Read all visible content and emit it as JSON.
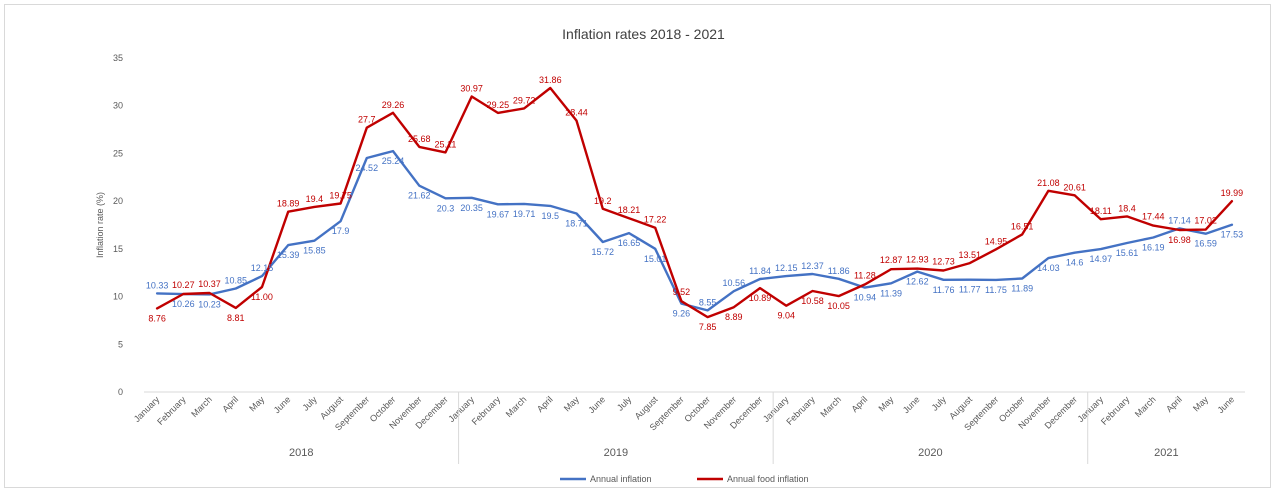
{
  "chart_data": {
    "type": "line",
    "title": "Inflation rates 2018 - 2021",
    "ylabel": "Inflation rate (%)",
    "xlabel": "",
    "ylim": [
      0,
      35
    ],
    "yticks": [
      "0",
      "5",
      "10",
      "15",
      "20",
      "25",
      "30",
      "35"
    ],
    "grid": false,
    "legend_position": "bottom",
    "categories": [
      "January",
      "February",
      "March",
      "April",
      "May",
      "June",
      "July",
      "August",
      "September",
      "October",
      "November",
      "December",
      "January",
      "February",
      "March",
      "April",
      "May",
      "June",
      "July",
      "August",
      "September",
      "October",
      "November",
      "December",
      "January",
      "February",
      "March",
      "April",
      "May",
      "June",
      "July",
      "August",
      "September",
      "October",
      "November",
      "December",
      "January",
      "February",
      "March",
      "April",
      "May",
      "June"
    ],
    "year_groups": [
      {
        "label": "2018",
        "start": 0,
        "end": 11
      },
      {
        "label": "2019",
        "start": 12,
        "end": 23
      },
      {
        "label": "2020",
        "start": 24,
        "end": 35
      },
      {
        "label": "2021",
        "start": 36,
        "end": 41
      }
    ],
    "series": [
      {
        "name": "Annual inflation",
        "color": "#4472c4",
        "values": [
          10.33,
          10.26,
          10.23,
          10.85,
          12.15,
          15.39,
          15.85,
          17.9,
          24.52,
          25.24,
          21.62,
          20.3,
          20.35,
          19.67,
          19.71,
          19.5,
          18.71,
          15.72,
          16.65,
          15.01,
          9.26,
          8.55,
          10.56,
          11.84,
          12.15,
          12.37,
          11.86,
          10.94,
          11.39,
          12.62,
          11.76,
          11.77,
          11.75,
          11.89,
          14.03,
          14.6,
          14.97,
          15.61,
          16.19,
          17.14,
          16.59,
          17.53
        ],
        "labels": [
          "10.33",
          "10.26",
          "10.23",
          "10.85",
          "12.15",
          "15.39",
          "15.85",
          "17.9",
          "24.52",
          "25.24",
          "21.62",
          "20.3",
          "20.35",
          "19.67",
          "19.71",
          "19.5",
          "18.71",
          "15.72",
          "16.65",
          "15.01",
          "9.26",
          "8.55",
          "10.56",
          "11.84",
          "12.15",
          "12.37",
          "11.86",
          "10.94",
          "11.39",
          "12.62",
          "11.76",
          "11.77",
          "11.75",
          "11.89",
          "14.03",
          "14.6",
          "14.97",
          "15.61",
          "16.19",
          "17.14",
          "16.59",
          "17.53"
        ]
      },
      {
        "name": "Annual food inflation",
        "color": "#c00000",
        "values": [
          8.76,
          10.27,
          10.37,
          8.81,
          11.0,
          18.89,
          19.4,
          19.75,
          27.7,
          29.26,
          25.68,
          25.11,
          30.97,
          29.25,
          29.72,
          31.86,
          28.44,
          19.2,
          18.21,
          17.22,
          9.52,
          7.85,
          8.89,
          10.89,
          9.04,
          10.58,
          10.05,
          11.28,
          12.87,
          12.93,
          12.73,
          13.51,
          14.95,
          16.51,
          21.08,
          20.61,
          18.11,
          18.4,
          17.44,
          16.98,
          17.02,
          19.99
        ],
        "labels": [
          "8.76",
          "10.27",
          "10.37",
          "8.81",
          "11.00",
          "18.89",
          "19.4",
          "19.75",
          "27.7",
          "29.26",
          "25.68",
          "25.11",
          "30.97",
          "29.25",
          "29.72",
          "31.86",
          "28.44",
          "19.2",
          "18.21",
          "17.22",
          "9.52",
          "7.85",
          "8.89",
          "10.89",
          "9.04",
          "10.58",
          "10.05",
          "11.28",
          "12.87",
          "12.93",
          "12.73",
          "13.51",
          "14.95",
          "16.51",
          "21.08",
          "20.61",
          "18.11",
          "18.4",
          "17.44",
          "16.98",
          "17.02",
          "19.99"
        ]
      }
    ]
  }
}
